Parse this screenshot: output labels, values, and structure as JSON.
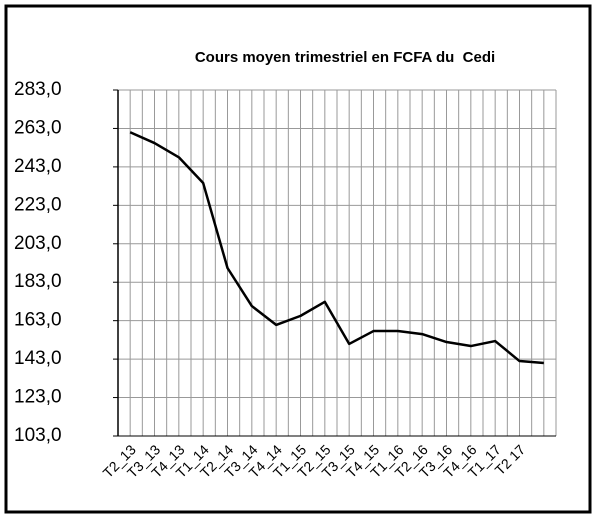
{
  "chart_data": {
    "type": "line",
    "title": "Cours moyen trimestriel en FCFA du  Cedi",
    "categories": [
      "T2_13",
      "T3_13",
      "T4_13",
      "T1_14",
      "T2_14",
      "T3_14",
      "T4_14",
      "T1_15",
      "T2_15",
      "T3_15",
      "T4_15",
      "T1_16",
      "T2_16",
      "T3_16",
      "T4_16",
      "T1_17",
      "T2 17",
      null
    ],
    "series": [
      {
        "color": "#000000",
        "values": [
          261,
          255.4,
          248,
          234.6,
          190.4,
          170.6,
          160.8,
          165.5,
          172.8,
          150.9,
          157.6,
          157.6,
          156,
          151.9,
          149.8,
          152.4,
          142,
          141
        ]
      }
    ],
    "ylim": [
      103,
      283
    ],
    "yticks": [
      {
        "value": 103,
        "label": "103,0"
      },
      {
        "value": 123,
        "label": "123,0"
      },
      {
        "value": 143,
        "label": "143,0"
      },
      {
        "value": 163,
        "label": "163,0"
      },
      {
        "value": 183,
        "label": "183,0"
      },
      {
        "value": 203,
        "label": "203,0"
      },
      {
        "value": 223,
        "label": "223,0"
      },
      {
        "value": 243,
        "label": "243,0"
      },
      {
        "value": 263,
        "label": "263,0"
      },
      {
        "value": 283,
        "label": "283,0"
      }
    ],
    "grid": true
  }
}
